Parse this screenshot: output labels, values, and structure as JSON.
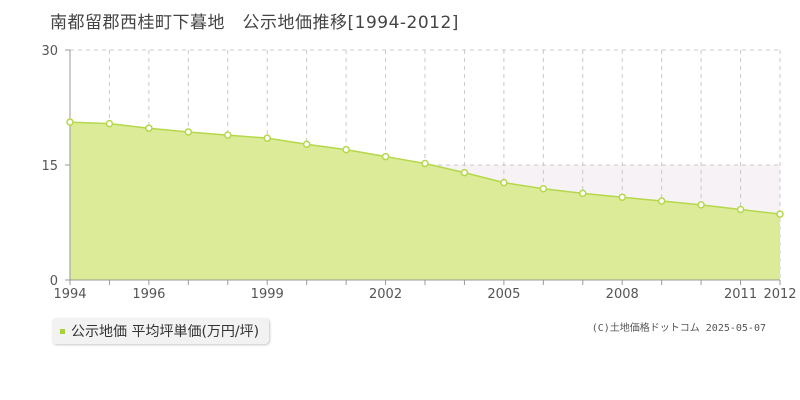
{
  "title": "南都留郡西桂町下暮地　公示地価推移[1994-2012]",
  "legend": {
    "label": "公示地価 平均坪単価(万円/坪)"
  },
  "credit": "(C)土地価格ドットコム 2025-05-07",
  "colors": {
    "fill": "#dceb98",
    "line": "#b5d84a",
    "point_fill": "#ffffff",
    "point_stroke": "#b5d84a",
    "grid": "#c8c8c8",
    "axis": "#999999",
    "band": "#f6f2f6"
  },
  "chart_data": {
    "type": "area",
    "title": "南都留郡西桂町下暮地　公示地価推移[1994-2012]",
    "xlabel": "",
    "ylabel": "",
    "x": [
      1994,
      1995,
      1996,
      1997,
      1998,
      1999,
      2000,
      2001,
      2002,
      2003,
      2004,
      2005,
      2006,
      2007,
      2008,
      2009,
      2010,
      2011,
      2012
    ],
    "x_tick_labels": [
      "1994",
      "1996",
      "1999",
      "2002",
      "2005",
      "2008",
      "2011",
      "2012"
    ],
    "y_tick_labels": [
      "0",
      "15",
      "30"
    ],
    "series": [
      {
        "name": "公示地価 平均坪単価(万円/坪)",
        "values": [
          20.6,
          20.4,
          19.8,
          19.3,
          18.9,
          18.5,
          17.7,
          17.0,
          16.1,
          15.2,
          14.0,
          12.7,
          11.9,
          11.3,
          10.8,
          10.3,
          9.8,
          9.2,
          8.6
        ]
      }
    ],
    "xlim": [
      1994,
      2012
    ],
    "ylim": [
      0,
      30
    ],
    "grid": true,
    "legend_position": "bottom-left"
  }
}
